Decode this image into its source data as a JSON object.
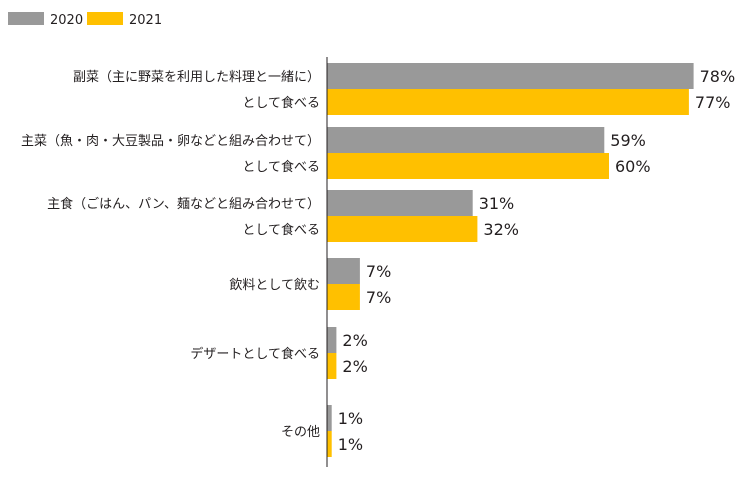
{
  "chart_data": {
    "type": "bar",
    "orientation": "horizontal",
    "legend_position": "top-left",
    "grid": false,
    "xlim": [
      0,
      100
    ],
    "value_suffix": "%",
    "categories": [
      [
        "副菜（主に野菜を利用した料理と一緒に）",
        "として食べる"
      ],
      [
        "主菜（魚・肉・大豆製品・卵などと組み合わせて）",
        "として食べる"
      ],
      [
        "主食（ごはん、パン、麺などと組み合わせて）",
        "として食べる"
      ],
      [
        "飲料として飲む"
      ],
      [
        "デザートとして食べる"
      ],
      [
        "その他"
      ]
    ],
    "series": [
      {
        "name": "2020",
        "color": "#999999",
        "values": [
          78,
          59,
          31,
          7,
          2,
          1
        ]
      },
      {
        "name": "2021",
        "color": "#ffc000",
        "values": [
          77,
          60,
          32,
          7,
          2,
          1
        ]
      }
    ]
  }
}
